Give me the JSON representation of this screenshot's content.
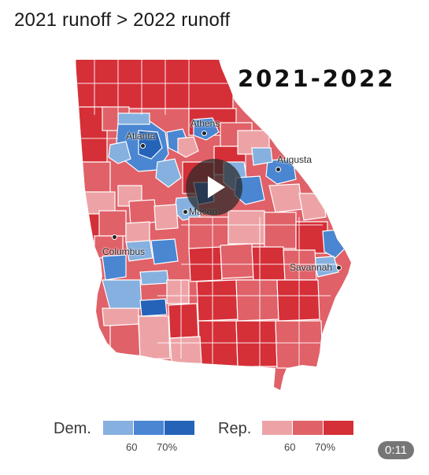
{
  "post": {
    "title": "2021 runoff > 2022 runoff"
  },
  "map": {
    "year_label": "2021-2022",
    "cities": {
      "atlanta": "Atlanta",
      "athens": "Athens",
      "augusta": "Augusta",
      "macon": "Macon",
      "columbus": "Columbus",
      "savannah": "Savannah"
    },
    "colors": {
      "dem_light": "#86b0df",
      "dem_mid": "#4a86d2",
      "dem_dark": "#2563b8",
      "rep_light": "#eda3a6",
      "rep_mid": "#e06168",
      "rep_dark": "#d52f38"
    }
  },
  "legend": {
    "dem_label": "Dem.",
    "rep_label": "Rep.",
    "dem_tick_60": "60",
    "dem_tick_70": "70%",
    "rep_tick_60": "60",
    "rep_tick_70": "70%"
  },
  "video": {
    "time": "0:11"
  }
}
